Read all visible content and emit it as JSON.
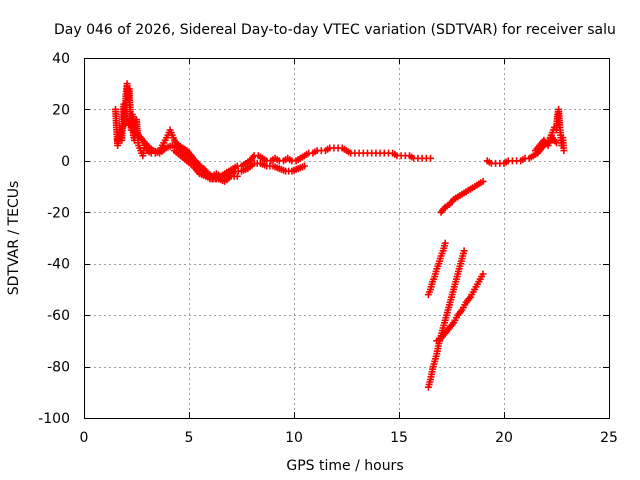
{
  "chart_data": {
    "type": "scatter",
    "title": "Day 046 of 2026, Sidereal Day-to-day VTEC variation (SDTVAR) for receiver salu",
    "xlabel": "GPS time / hours",
    "ylabel": "SDTVAR / TECUs",
    "xlim": [
      0,
      25
    ],
    "ylim": [
      -100,
      40
    ],
    "x_ticks": [
      0,
      5,
      10,
      15,
      20,
      25
    ],
    "y_ticks": [
      -100,
      -80,
      -60,
      -40,
      -20,
      0,
      20,
      40
    ],
    "grid": true,
    "legend": "none",
    "marker": "plus",
    "colors": {
      "series": "#ff0000",
      "grid": "#a0a0a0",
      "axes": "#000000"
    },
    "series": [
      {
        "points": [
          [
            1.5,
            20
          ],
          [
            1.6,
            6
          ],
          [
            1.7,
            12
          ],
          [
            1.8,
            8
          ],
          [
            1.85,
            18
          ],
          [
            1.9,
            22
          ],
          [
            1.95,
            14
          ],
          [
            2.0,
            26
          ],
          [
            2.05,
            30
          ],
          [
            2.1,
            24
          ],
          [
            2.15,
            28
          ],
          [
            2.2,
            20
          ],
          [
            2.25,
            12
          ],
          [
            2.3,
            18
          ],
          [
            2.35,
            10
          ],
          [
            2.4,
            8
          ],
          [
            2.5,
            16
          ],
          [
            2.55,
            10
          ],
          [
            2.6,
            6
          ],
          [
            2.7,
            4
          ],
          [
            2.8,
            2
          ],
          [
            2.9,
            6
          ],
          [
            3.0,
            4
          ],
          [
            3.2,
            3
          ],
          [
            3.4,
            3
          ],
          [
            3.6,
            4
          ],
          [
            3.8,
            7
          ],
          [
            4.0,
            10
          ],
          [
            4.1,
            12
          ],
          [
            4.2,
            10
          ],
          [
            4.3,
            8
          ],
          [
            4.5,
            6
          ],
          [
            4.7,
            5
          ],
          [
            4.9,
            4
          ],
          [
            5.1,
            2
          ],
          [
            5.3,
            0
          ],
          [
            5.5,
            -2
          ],
          [
            5.7,
            -3
          ],
          [
            5.9,
            -5
          ],
          [
            6.1,
            -6
          ],
          [
            6.3,
            -5
          ],
          [
            6.5,
            -6
          ],
          [
            6.7,
            -5
          ],
          [
            6.9,
            -4
          ],
          [
            7.1,
            -3
          ],
          [
            7.3,
            -2
          ],
          [
            7.5,
            -2
          ],
          [
            7.7,
            -1
          ],
          [
            7.9,
            0
          ],
          [
            8.1,
            2
          ],
          [
            8.3,
            2
          ],
          [
            8.5,
            1
          ],
          [
            8.7,
            0
          ],
          [
            8.9,
            0
          ],
          [
            9.1,
            1
          ],
          [
            9.3,
            0
          ],
          [
            9.5,
            0
          ],
          [
            9.7,
            1
          ],
          [
            9.9,
            0
          ],
          [
            10.1,
            0
          ],
          [
            10.3,
            1
          ],
          [
            10.5,
            2
          ],
          [
            10.7,
            3
          ],
          [
            10.9,
            3
          ],
          [
            11.1,
            4
          ],
          [
            11.3,
            4
          ],
          [
            11.5,
            4
          ],
          [
            11.7,
            5
          ],
          [
            11.9,
            5
          ],
          [
            12.1,
            5
          ],
          [
            12.3,
            5
          ],
          [
            12.5,
            4
          ],
          [
            12.7,
            3
          ],
          [
            12.9,
            3
          ],
          [
            13.1,
            3
          ],
          [
            13.3,
            3
          ],
          [
            13.5,
            3
          ],
          [
            13.7,
            3
          ],
          [
            13.9,
            3
          ],
          [
            14.1,
            3
          ],
          [
            14.3,
            3
          ],
          [
            14.5,
            3
          ],
          [
            14.7,
            3
          ],
          [
            14.9,
            2
          ],
          [
            15.1,
            2
          ],
          [
            15.3,
            2
          ],
          [
            15.5,
            2
          ],
          [
            15.7,
            1
          ],
          [
            15.9,
            1
          ],
          [
            16.1,
            1
          ],
          [
            16.3,
            1
          ],
          [
            16.5,
            1
          ]
        ]
      },
      {
        "points": [
          [
            1.6,
            8
          ],
          [
            1.8,
            12
          ],
          [
            2.0,
            16
          ],
          [
            2.2,
            14
          ],
          [
            2.4,
            12
          ],
          [
            2.6,
            10
          ],
          [
            2.8,
            8
          ],
          [
            3.0,
            6
          ],
          [
            3.3,
            4
          ],
          [
            3.6,
            3
          ],
          [
            3.9,
            5
          ],
          [
            4.2,
            6
          ],
          [
            4.5,
            5
          ],
          [
            4.8,
            3
          ],
          [
            5.1,
            1
          ],
          [
            5.4,
            -1
          ],
          [
            5.7,
            -4
          ],
          [
            6.0,
            -7
          ],
          [
            6.3,
            -7
          ],
          [
            6.6,
            -6
          ],
          [
            6.9,
            -5
          ],
          [
            7.2,
            -4
          ],
          [
            7.5,
            -4
          ],
          [
            7.8,
            -3
          ],
          [
            8.1,
            -1
          ],
          [
            8.4,
            -1
          ],
          [
            8.7,
            -2
          ],
          [
            9.0,
            -2
          ],
          [
            9.3,
            -3
          ],
          [
            9.6,
            -4
          ],
          [
            9.9,
            -4
          ],
          [
            10.2,
            -3
          ],
          [
            10.5,
            -2
          ]
        ]
      },
      {
        "points": [
          [
            4.3,
            4
          ],
          [
            4.6,
            2
          ],
          [
            4.9,
            0
          ],
          [
            5.2,
            -2
          ],
          [
            5.5,
            -5
          ],
          [
            5.8,
            -6
          ],
          [
            6.1,
            -7
          ],
          [
            6.4,
            -7
          ],
          [
            6.7,
            -8
          ],
          [
            7.0,
            -6
          ],
          [
            7.3,
            -6
          ]
        ]
      },
      {
        "points": [
          [
            16.4,
            -52
          ],
          [
            16.5,
            -50
          ],
          [
            16.6,
            -47
          ],
          [
            16.7,
            -45
          ],
          [
            16.8,
            -42
          ],
          [
            16.9,
            -40
          ],
          [
            17.0,
            -37
          ],
          [
            17.1,
            -35
          ],
          [
            17.2,
            -32
          ]
        ]
      },
      {
        "points": [
          [
            16.4,
            -88
          ],
          [
            16.5,
            -85
          ],
          [
            16.6,
            -81
          ],
          [
            16.7,
            -78
          ],
          [
            16.8,
            -75
          ],
          [
            16.9,
            -71
          ],
          [
            17.0,
            -68
          ],
          [
            17.1,
            -65
          ],
          [
            17.2,
            -62
          ],
          [
            17.3,
            -59
          ],
          [
            17.4,
            -56
          ],
          [
            17.5,
            -53
          ],
          [
            17.6,
            -50
          ],
          [
            17.7,
            -47
          ],
          [
            17.8,
            -44
          ],
          [
            17.9,
            -41
          ],
          [
            18.0,
            -38
          ],
          [
            18.1,
            -35
          ]
        ]
      },
      {
        "points": [
          [
            16.8,
            -70
          ],
          [
            17.0,
            -69
          ],
          [
            17.2,
            -67
          ],
          [
            17.4,
            -65
          ],
          [
            17.6,
            -63
          ],
          [
            17.8,
            -60
          ],
          [
            18.0,
            -58
          ],
          [
            18.2,
            -55
          ],
          [
            18.4,
            -53
          ],
          [
            18.6,
            -50
          ],
          [
            18.8,
            -47
          ],
          [
            19.0,
            -44
          ]
        ]
      },
      {
        "points": [
          [
            17.0,
            -20
          ],
          [
            17.2,
            -18
          ],
          [
            17.4,
            -17
          ],
          [
            17.6,
            -15
          ],
          [
            17.8,
            -14
          ],
          [
            18.0,
            -13
          ],
          [
            18.2,
            -12
          ],
          [
            18.4,
            -11
          ],
          [
            18.6,
            -10
          ],
          [
            18.8,
            -9
          ],
          [
            19.0,
            -8
          ]
        ]
      },
      {
        "points": [
          [
            19.2,
            0
          ],
          [
            19.4,
            -1
          ],
          [
            19.6,
            -1
          ],
          [
            19.8,
            -1
          ],
          [
            20.0,
            -1
          ],
          [
            20.2,
            0
          ],
          [
            20.4,
            0
          ],
          [
            20.6,
            0
          ],
          [
            20.8,
            0
          ],
          [
            21.0,
            1
          ],
          [
            21.2,
            1
          ],
          [
            21.4,
            2
          ],
          [
            21.6,
            3
          ],
          [
            21.8,
            5
          ],
          [
            22.0,
            7
          ],
          [
            22.1,
            8
          ],
          [
            22.2,
            9
          ],
          [
            22.3,
            11
          ],
          [
            22.4,
            13
          ],
          [
            22.5,
            12
          ],
          [
            22.55,
            18
          ],
          [
            22.6,
            20
          ],
          [
            22.65,
            14
          ],
          [
            22.7,
            10
          ],
          [
            22.75,
            6
          ],
          [
            22.8,
            9
          ],
          [
            22.85,
            4
          ]
        ]
      },
      {
        "points": [
          [
            21.5,
            4
          ],
          [
            21.7,
            6
          ],
          [
            21.9,
            8
          ],
          [
            22.1,
            6
          ],
          [
            22.3,
            9
          ],
          [
            22.5,
            7
          ]
        ]
      }
    ]
  }
}
